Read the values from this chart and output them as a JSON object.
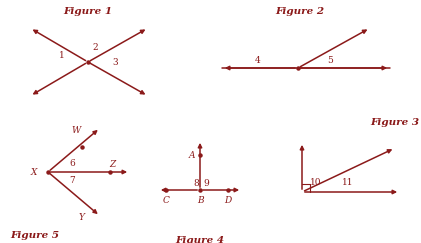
{
  "bg_color": "#ffffff",
  "arrow_color": "#8B1A1A",
  "label_color": "#8B1A1A",
  "fig1_title": "Figure 1",
  "fig2_title": "Figure 2",
  "fig3_title": "Figure 3",
  "fig4_title": "Figure 4",
  "fig5_title": "Figure 5",
  "title_fontsize": 7.5,
  "label_fontsize": 6.5,
  "lw": 1.1
}
